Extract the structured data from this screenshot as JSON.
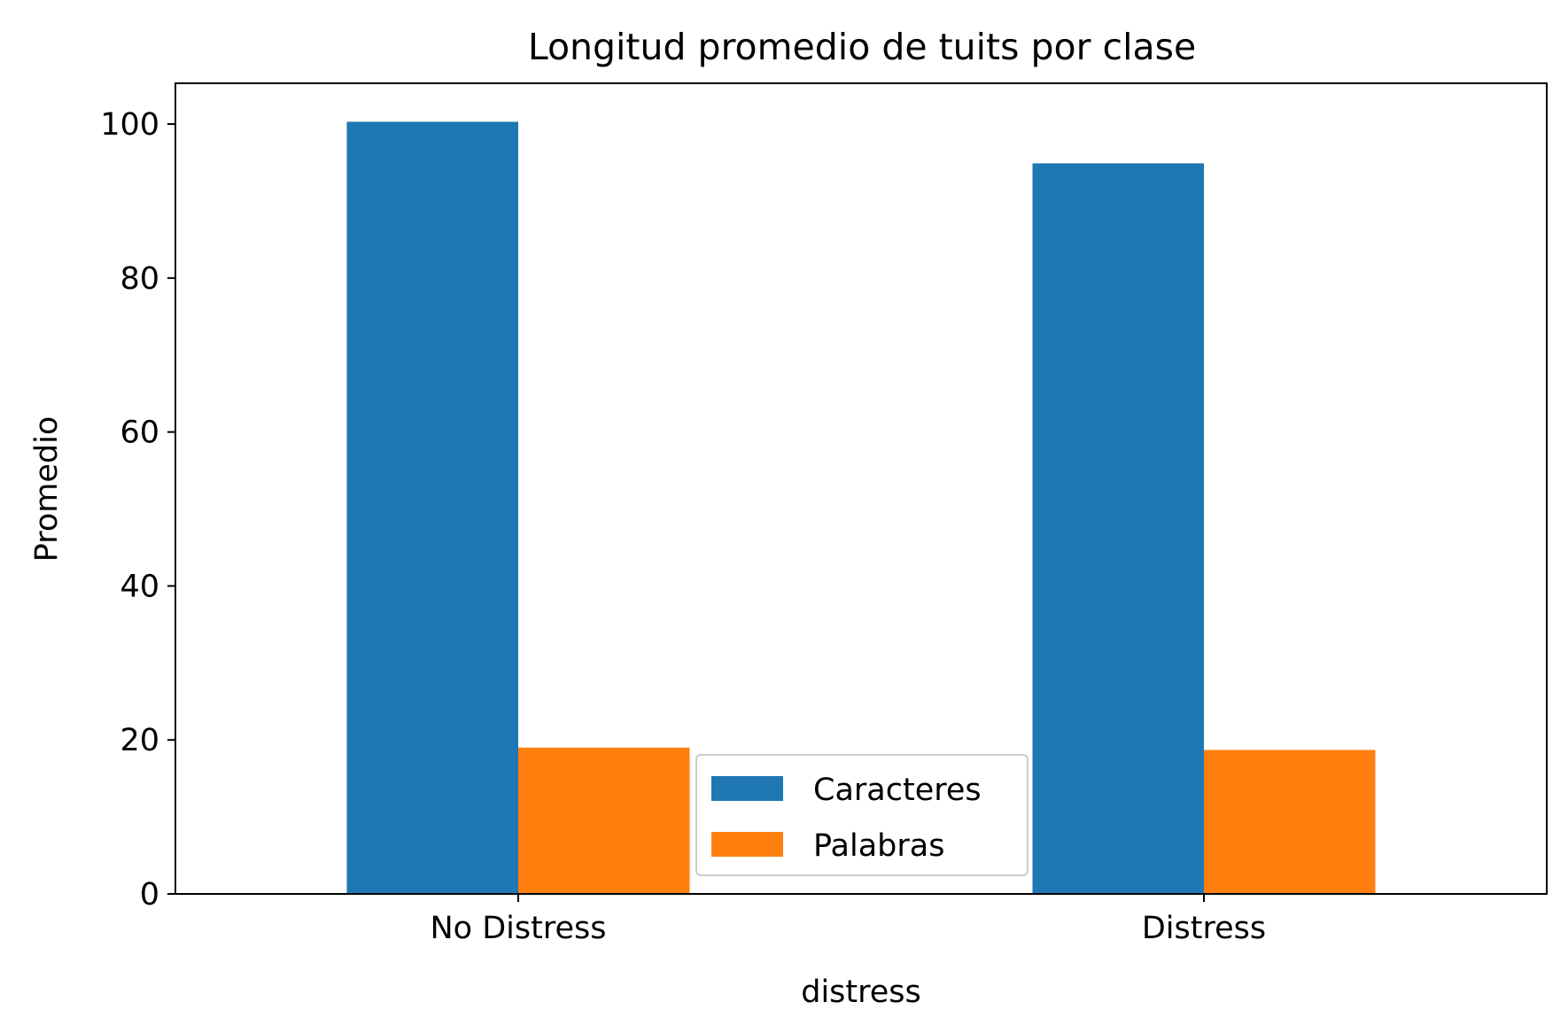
{
  "chart_data": {
    "type": "bar",
    "title": "Longitud promedio de tuits por clase",
    "xlabel": "distress",
    "ylabel": "Promedio",
    "categories": [
      "No Distress",
      "Distress"
    ],
    "series": [
      {
        "name": "Caracteres",
        "color": "#1f77b4",
        "values": [
          100.3,
          94.9
        ]
      },
      {
        "name": "Palabras",
        "color": "#ff7f0e",
        "values": [
          19.0,
          18.7
        ]
      }
    ],
    "ylim": [
      0,
      105.3
    ],
    "yticks": [
      0,
      20,
      40,
      60,
      80,
      100
    ],
    "grid": false,
    "legend": {
      "position": "lower center",
      "entries": [
        "Caracteres",
        "Palabras"
      ]
    }
  }
}
